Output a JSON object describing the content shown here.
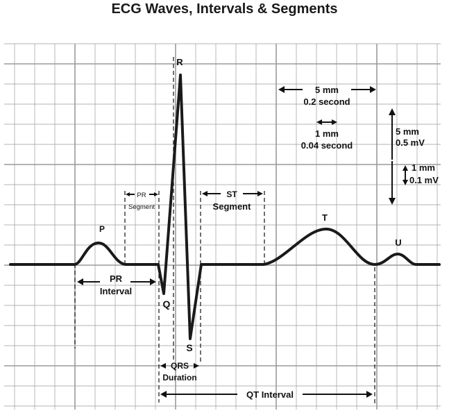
{
  "title": "ECG Waves, Intervals & Segments",
  "waves": {
    "p": "P",
    "q": "Q",
    "r": "R",
    "s": "S",
    "t": "T",
    "u": "U"
  },
  "pr_segment": {
    "line1": "PR",
    "line2": "Segment"
  },
  "st_segment": {
    "line1": "ST",
    "line2": "Segment"
  },
  "pr_interval": {
    "line1": "PR",
    "line2": "Interval"
  },
  "qrs_duration": {
    "line1": "QRS",
    "line2": "Duration"
  },
  "qt_interval": "QT Interval",
  "scale": {
    "large_box_time_mm": "5 mm",
    "large_box_time": "0.2 second",
    "small_box_time_mm": "1 mm",
    "small_box_time": "0.04 second",
    "large_box_volt_mm": "5 mm",
    "large_box_volt": "0.5 mV",
    "small_box_volt_mm": "1 mm",
    "small_box_volt": "0.1 mV"
  },
  "colors": {
    "grid": "#9a9a9a",
    "trace": "#1a1a1a"
  }
}
